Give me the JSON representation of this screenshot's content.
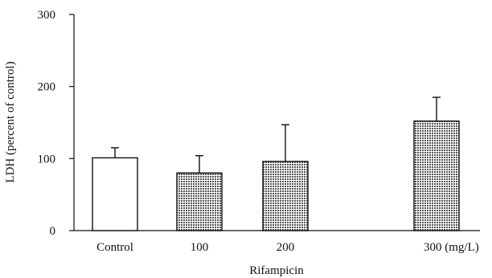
{
  "chart_data": {
    "type": "bar",
    "categories": [
      "Control",
      "100",
      "200",
      "300 (mg/L)"
    ],
    "values": [
      101,
      80,
      96,
      152
    ],
    "errors": [
      14,
      24,
      51,
      33
    ],
    "fills": [
      "open",
      "hatched",
      "hatched",
      "hatched"
    ],
    "xlabel": "Rifampicin",
    "ylabel": "LDH (percent of control)",
    "ylim": [
      0,
      300
    ],
    "yticks": [
      "0",
      "100",
      "200",
      "300"
    ],
    "grid": false,
    "colors": {
      "open": "#ffffff",
      "hatched": "#6a6a6a",
      "stroke": "#111111"
    }
  }
}
